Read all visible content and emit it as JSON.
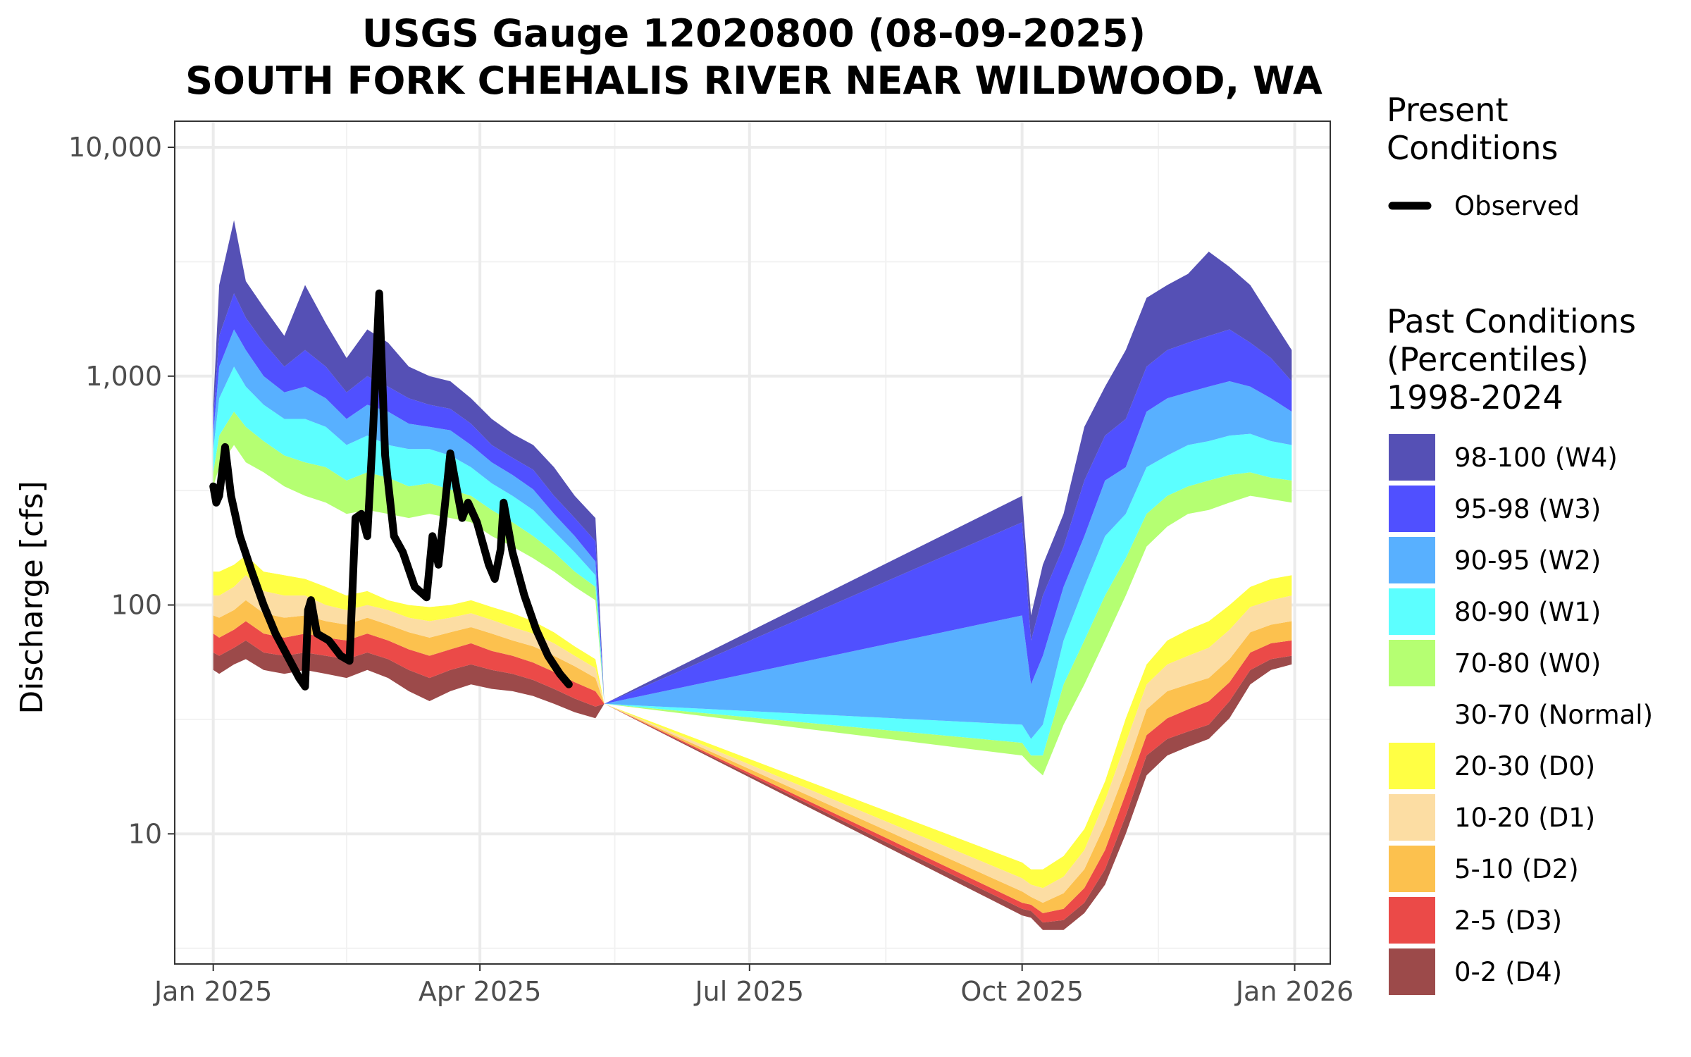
{
  "chart_data": {
    "type": "area",
    "title": [
      "USGS Gauge 12020800 (08-09-2025)",
      "SOUTH FORK CHEHALIS RIVER NEAR WILDWOOD, WA"
    ],
    "ylabel": "Discharge [cfs]",
    "xlabel": "",
    "y_scale": "log10",
    "ylim": [
      2.7,
      13000
    ],
    "xlim": [
      "2024-12-19",
      "2026-01-13"
    ],
    "grid": true,
    "x_ticks": [
      {
        "date": "2025-01-01",
        "label": "Jan 2025"
      },
      {
        "date": "2025-04-01",
        "label": "Apr 2025"
      },
      {
        "date": "2025-07-01",
        "label": "Jul 2025"
      },
      {
        "date": "2025-10-01",
        "label": "Oct 2025"
      },
      {
        "date": "2026-01-01",
        "label": "Jan 2026"
      }
    ],
    "y_ticks": [
      {
        "value": 10,
        "label": "10"
      },
      {
        "value": 100,
        "label": "100"
      },
      {
        "value": 1000,
        "label": "1,000"
      },
      {
        "value": 10000,
        "label": "10,000"
      }
    ],
    "present_legend": {
      "title": [
        "Present",
        "Conditions"
      ],
      "items": [
        {
          "label": "Observed",
          "color": "#000000"
        }
      ]
    },
    "past_legend": {
      "title": [
        "Past Conditions",
        "(Percentiles)",
        "1998-2024"
      ],
      "items": [
        {
          "label": "98-100 (W4)",
          "color": "#5550B5"
        },
        {
          "label": "95-98 (W3)",
          "color": "#5050FF"
        },
        {
          "label": "90-95 (W2)",
          "color": "#58B0FF"
        },
        {
          "label": "80-90 (W1)",
          "color": "#5CFFFF"
        },
        {
          "label": "70-80 (W0)",
          "color": "#B5FF72"
        },
        {
          "label": "30-70 (Normal)",
          "color": "#FFFFFF"
        },
        {
          "label": "20-30 (D0)",
          "color": "#FFFF44"
        },
        {
          "label": "10-20 (D1)",
          "color": "#FCDDA3"
        },
        {
          "label": "5-10 (D2)",
          "color": "#FCC14E"
        },
        {
          "label": "2-5 (D3)",
          "color": "#EB4A48"
        },
        {
          "label": "0-2 (D4)",
          "color": "#9C4A4A"
        }
      ]
    },
    "percentile_bounds_names": [
      "p0",
      "p2",
      "p5",
      "p10",
      "p20",
      "p30",
      "p70",
      "p80",
      "p90",
      "p95",
      "p98",
      "p100"
    ],
    "percentile_bounds": [
      {
        "date": "2025-01-01",
        "v": [
          52,
          62,
          75,
          90,
          110,
          140,
          330,
          380,
          480,
          560,
          650,
          750
        ]
      },
      {
        "date": "2025-01-03",
        "v": [
          50,
          60,
          72,
          88,
          110,
          140,
          400,
          550,
          800,
          1100,
          1500,
          2500
        ]
      },
      {
        "date": "2025-01-08",
        "v": [
          55,
          65,
          78,
          95,
          120,
          150,
          500,
          700,
          1100,
          1600,
          2300,
          4800
        ]
      },
      {
        "date": "2025-01-12",
        "v": [
          58,
          70,
          85,
          105,
          135,
          165,
          420,
          600,
          900,
          1300,
          1800,
          2600
        ]
      },
      {
        "date": "2025-01-18",
        "v": [
          52,
          62,
          75,
          92,
          115,
          140,
          380,
          520,
          750,
          1000,
          1400,
          2000
        ]
      },
      {
        "date": "2025-01-25",
        "v": [
          50,
          60,
          72,
          88,
          110,
          135,
          330,
          450,
          650,
          850,
          1100,
          1500
        ]
      },
      {
        "date": "2025-02-01",
        "v": [
          52,
          62,
          75,
          90,
          110,
          130,
          300,
          420,
          650,
          900,
          1300,
          2500
        ]
      },
      {
        "date": "2025-02-08",
        "v": [
          50,
          60,
          72,
          85,
          100,
          120,
          280,
          400,
          600,
          800,
          1100,
          1700
        ]
      },
      {
        "date": "2025-02-15",
        "v": [
          48,
          58,
          70,
          82,
          95,
          110,
          250,
          350,
          500,
          650,
          850,
          1200
        ]
      },
      {
        "date": "2025-02-22",
        "v": [
          52,
          62,
          75,
          88,
          100,
          115,
          260,
          380,
          550,
          750,
          1000,
          1600
        ]
      },
      {
        "date": "2025-03-01",
        "v": [
          48,
          58,
          70,
          82,
          95,
          105,
          250,
          360,
          500,
          700,
          900,
          1400
        ]
      },
      {
        "date": "2025-03-08",
        "v": [
          42,
          52,
          64,
          76,
          88,
          100,
          240,
          330,
          480,
          620,
          800,
          1100
        ]
      },
      {
        "date": "2025-03-15",
        "v": [
          38,
          48,
          60,
          72,
          85,
          98,
          250,
          340,
          480,
          600,
          750,
          1000
        ]
      },
      {
        "date": "2025-03-22",
        "v": [
          42,
          52,
          64,
          76,
          88,
          100,
          240,
          320,
          450,
          580,
          720,
          950
        ]
      },
      {
        "date": "2025-03-29",
        "v": [
          45,
          55,
          68,
          80,
          92,
          105,
          230,
          300,
          400,
          500,
          620,
          800
        ]
      },
      {
        "date": "2025-04-05",
        "v": [
          43,
          52,
          63,
          75,
          86,
          98,
          200,
          260,
          340,
          420,
          500,
          650
        ]
      },
      {
        "date": "2025-04-12",
        "v": [
          42,
          50,
          60,
          70,
          80,
          92,
          180,
          230,
          300,
          370,
          440,
          560
        ]
      },
      {
        "date": "2025-04-19",
        "v": [
          40,
          47,
          56,
          66,
          75,
          85,
          160,
          200,
          260,
          320,
          390,
          500
        ]
      },
      {
        "date": "2025-04-26",
        "v": [
          37,
          43,
          51,
          60,
          68,
          76,
          140,
          170,
          210,
          250,
          300,
          400
        ]
      },
      {
        "date": "2025-05-03",
        "v": [
          34,
          39,
          46,
          54,
          60,
          66,
          120,
          140,
          170,
          200,
          240,
          300
        ]
      },
      {
        "date": "2025-05-10",
        "v": [
          32,
          36,
          42,
          48,
          53,
          58,
          105,
          120,
          135,
          155,
          190,
          240
        ]
      },
      {
        "date": "2025-05-13",
        "v": [
          37,
          37,
          37,
          37,
          37,
          37,
          37,
          37,
          37,
          37,
          37,
          37
        ]
      },
      {
        "date": "2025-10-01",
        "v": [
          4.4,
          4.7,
          5.0,
          5.6,
          6.4,
          7.5,
          22,
          25,
          30,
          90,
          230,
          300
        ]
      },
      {
        "date": "2025-10-04",
        "v": [
          4.3,
          4.6,
          4.9,
          5.3,
          6.0,
          7.0,
          20,
          22,
          26,
          45,
          70,
          90
        ]
      },
      {
        "date": "2025-10-08",
        "v": [
          3.8,
          4.1,
          4.5,
          5.0,
          5.8,
          7.0,
          18,
          22,
          30,
          60,
          110,
          150
        ]
      },
      {
        "date": "2025-10-15",
        "v": [
          3.8,
          4.2,
          4.7,
          5.5,
          6.5,
          8.0,
          30,
          45,
          70,
          120,
          180,
          250
        ]
      },
      {
        "date": "2025-10-22",
        "v": [
          4.5,
          5.0,
          5.8,
          7.0,
          8.5,
          10.5,
          45,
          70,
          120,
          200,
          350,
          600
        ]
      },
      {
        "date": "2025-10-29",
        "v": [
          6.0,
          7.0,
          8.5,
          11,
          14,
          17,
          70,
          110,
          200,
          350,
          550,
          900
        ]
      },
      {
        "date": "2025-11-05",
        "v": [
          10,
          12,
          15,
          19,
          25,
          32,
          110,
          160,
          250,
          400,
          650,
          1300
        ]
      },
      {
        "date": "2025-11-12",
        "v": [
          18,
          22,
          27,
          35,
          45,
          55,
          180,
          250,
          400,
          700,
          1100,
          2200
        ]
      },
      {
        "date": "2025-11-19",
        "v": [
          22,
          26,
          32,
          42,
          55,
          70,
          220,
          300,
          450,
          800,
          1300,
          2500
        ]
      },
      {
        "date": "2025-11-26",
        "v": [
          24,
          28,
          35,
          45,
          60,
          78,
          250,
          330,
          500,
          850,
          1400,
          2800
        ]
      },
      {
        "date": "2025-12-03",
        "v": [
          26,
          30,
          38,
          48,
          65,
          85,
          260,
          350,
          520,
          900,
          1500,
          3500
        ]
      },
      {
        "date": "2025-12-10",
        "v": [
          32,
          38,
          46,
          58,
          78,
          100,
          280,
          370,
          550,
          950,
          1600,
          3000
        ]
      },
      {
        "date": "2025-12-17",
        "v": [
          45,
          52,
          62,
          76,
          98,
          120,
          300,
          380,
          560,
          900,
          1400,
          2500
        ]
      },
      {
        "date": "2025-12-24",
        "v": [
          52,
          58,
          68,
          82,
          105,
          130,
          290,
          360,
          520,
          800,
          1200,
          1800
        ]
      },
      {
        "date": "2025-12-31",
        "v": [
          55,
          60,
          70,
          85,
          110,
          135,
          280,
          350,
          500,
          700,
          950,
          1300
        ]
      }
    ],
    "series": [
      {
        "name": "Observed",
        "color": "#000000",
        "points": [
          {
            "date": "2025-01-01",
            "value": 330
          },
          {
            "date": "2025-01-02",
            "value": 280
          },
          {
            "date": "2025-01-03",
            "value": 300
          },
          {
            "date": "2025-01-05",
            "value": 490
          },
          {
            "date": "2025-01-07",
            "value": 300
          },
          {
            "date": "2025-01-10",
            "value": 200
          },
          {
            "date": "2025-01-14",
            "value": 140
          },
          {
            "date": "2025-01-18",
            "value": 100
          },
          {
            "date": "2025-01-22",
            "value": 75
          },
          {
            "date": "2025-01-26",
            "value": 60
          },
          {
            "date": "2025-01-30",
            "value": 48
          },
          {
            "date": "2025-02-01",
            "value": 44
          },
          {
            "date": "2025-02-02",
            "value": 95
          },
          {
            "date": "2025-02-03",
            "value": 105
          },
          {
            "date": "2025-02-05",
            "value": 75
          },
          {
            "date": "2025-02-09",
            "value": 70
          },
          {
            "date": "2025-02-13",
            "value": 60
          },
          {
            "date": "2025-02-16",
            "value": 57
          },
          {
            "date": "2025-02-18",
            "value": 240
          },
          {
            "date": "2025-02-20",
            "value": 250
          },
          {
            "date": "2025-02-22",
            "value": 200
          },
          {
            "date": "2025-02-24",
            "value": 600
          },
          {
            "date": "2025-02-26",
            "value": 2300
          },
          {
            "date": "2025-02-28",
            "value": 450
          },
          {
            "date": "2025-03-03",
            "value": 200
          },
          {
            "date": "2025-03-06",
            "value": 170
          },
          {
            "date": "2025-03-10",
            "value": 120
          },
          {
            "date": "2025-03-14",
            "value": 108
          },
          {
            "date": "2025-03-16",
            "value": 200
          },
          {
            "date": "2025-03-18",
            "value": 150
          },
          {
            "date": "2025-03-20",
            "value": 260
          },
          {
            "date": "2025-03-22",
            "value": 460
          },
          {
            "date": "2025-03-24",
            "value": 330
          },
          {
            "date": "2025-03-26",
            "value": 240
          },
          {
            "date": "2025-03-28",
            "value": 280
          },
          {
            "date": "2025-03-31",
            "value": 230
          },
          {
            "date": "2025-04-04",
            "value": 150
          },
          {
            "date": "2025-04-06",
            "value": 130
          },
          {
            "date": "2025-04-08",
            "value": 175
          },
          {
            "date": "2025-04-09",
            "value": 280
          },
          {
            "date": "2025-04-12",
            "value": 170
          },
          {
            "date": "2025-04-16",
            "value": 110
          },
          {
            "date": "2025-04-20",
            "value": 78
          },
          {
            "date": "2025-04-24",
            "value": 60
          },
          {
            "date": "2025-04-28",
            "value": 50
          },
          {
            "date": "2025-05-01",
            "value": 45
          }
        ]
      }
    ]
  }
}
